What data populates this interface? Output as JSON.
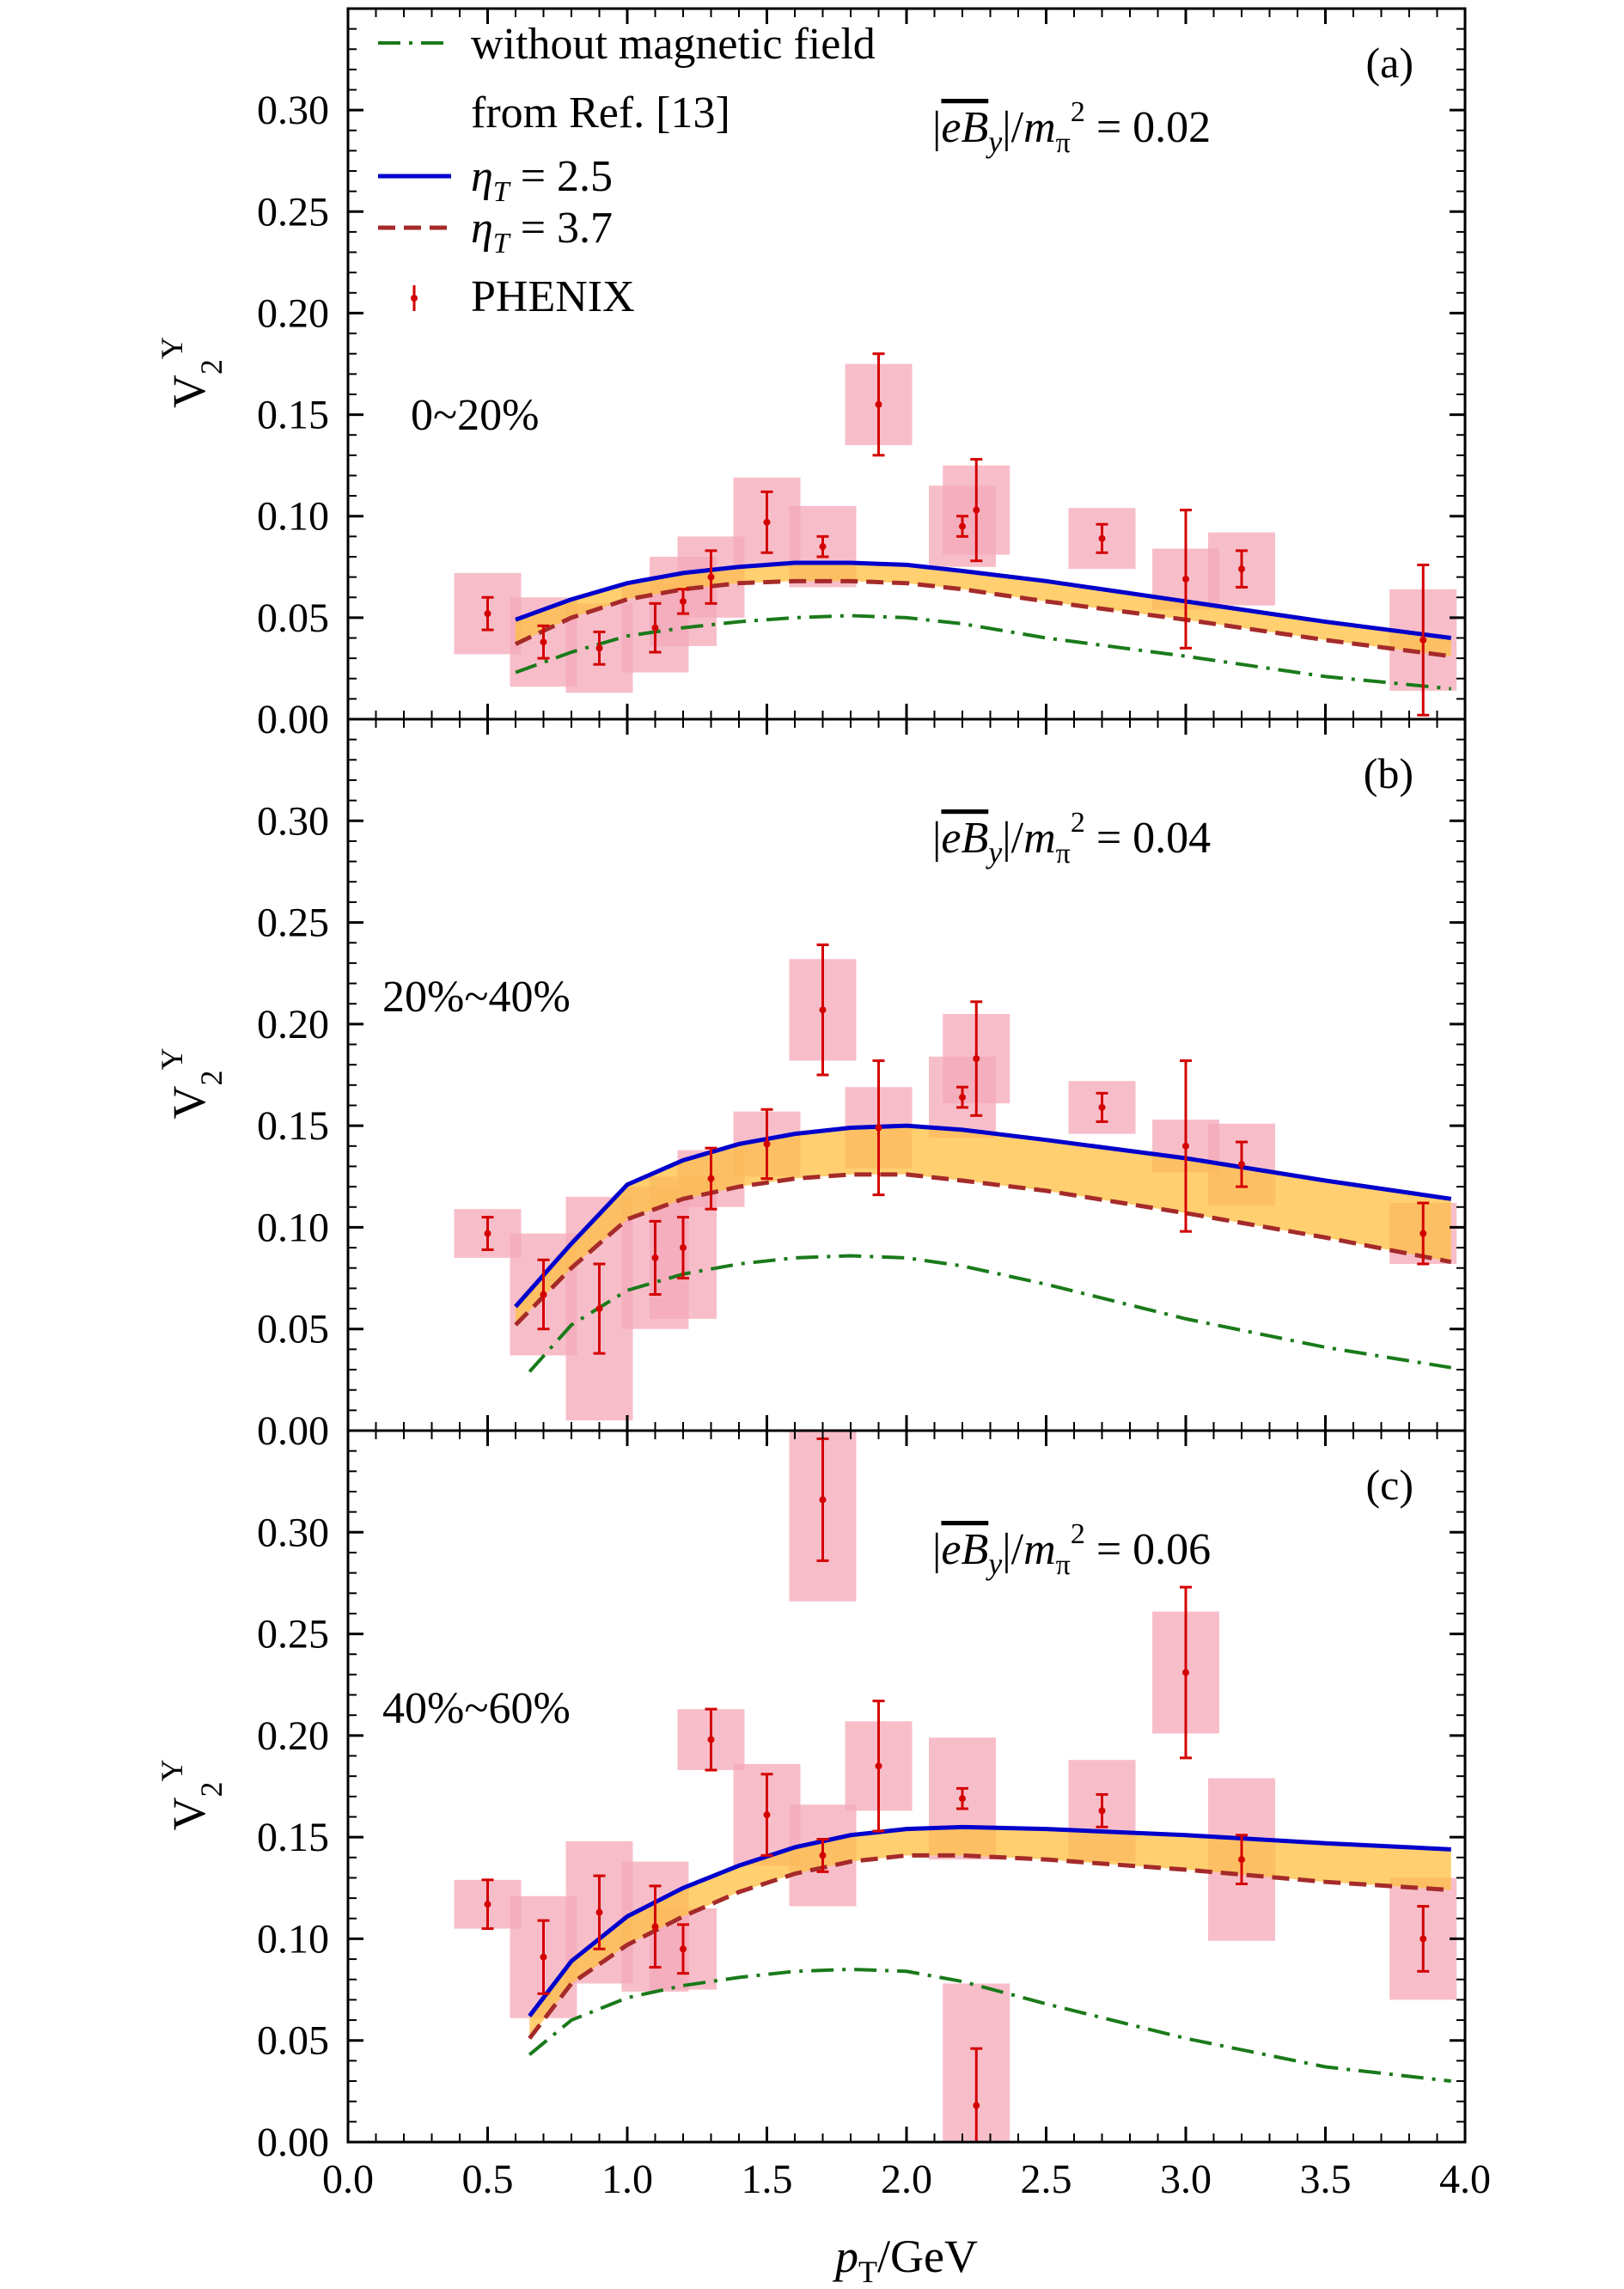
{
  "chart_data": {
    "type": "line",
    "xlabel": "p_T/GeV",
    "ylabel": "V_2^Y",
    "xlim": [
      0.0,
      4.0
    ],
    "ylim": [
      0.0,
      0.35
    ],
    "xticks": [
      "0.0",
      "0.5",
      "1.0",
      "1.5",
      "2.0",
      "2.5",
      "3.0",
      "3.5",
      "4.0"
    ],
    "yticks": [
      "0.00",
      "0.05",
      "0.10",
      "0.15",
      "0.20",
      "0.25",
      "0.30"
    ],
    "grid": false,
    "colors": {
      "no_field": "#1a7a1a",
      "eta25": "#0000cc",
      "eta37": "#a52a2a",
      "band": "#ffbf40",
      "data": "#d40000",
      "sys_box": "#f4a8b8"
    },
    "legend": {
      "placement": "top-left",
      "entries": [
        {
          "key": "no_field",
          "line1": "without magnetic field",
          "line2": "from Ref. [13]"
        },
        {
          "key": "eta25",
          "label": "η_T = 2.5"
        },
        {
          "key": "eta37",
          "label": "η_T = 3.7"
        },
        {
          "key": "phenix",
          "label": "PHENIX"
        }
      ]
    },
    "panels": [
      {
        "label": "(a)",
        "centrality": "0~20%",
        "field_label": "|eB_y|/m_π² = 0.02",
        "series": [
          {
            "key": "no_field",
            "x": [
              0.6,
              0.8,
              1.0,
              1.2,
              1.4,
              1.6,
              1.8,
              2.0,
              2.2,
              2.5,
              3.0,
              3.5,
              3.95
            ],
            "y": [
              0.023,
              0.033,
              0.041,
              0.045,
              0.048,
              0.05,
              0.051,
              0.05,
              0.047,
              0.04,
              0.031,
              0.021,
              0.015
            ]
          },
          {
            "key": "eta25",
            "x": [
              0.6,
              0.8,
              1.0,
              1.2,
              1.4,
              1.6,
              1.8,
              2.0,
              2.2,
              2.5,
              3.0,
              3.5,
              3.95
            ],
            "y": [
              0.049,
              0.059,
              0.067,
              0.072,
              0.075,
              0.077,
              0.077,
              0.076,
              0.073,
              0.068,
              0.058,
              0.048,
              0.04
            ]
          },
          {
            "key": "eta37",
            "x": [
              0.6,
              0.8,
              1.0,
              1.2,
              1.4,
              1.6,
              1.8,
              2.0,
              2.2,
              2.5,
              3.0,
              3.5,
              3.95
            ],
            "y": [
              0.037,
              0.05,
              0.059,
              0.064,
              0.067,
              0.068,
              0.068,
              0.067,
              0.064,
              0.058,
              0.049,
              0.039,
              0.031
            ]
          }
        ],
        "phenix": {
          "x": [
            0.5,
            0.7,
            0.9,
            1.1,
            1.2,
            1.3,
            1.5,
            1.7,
            1.9,
            2.2,
            2.25,
            2.7,
            3.0,
            3.2,
            3.85
          ],
          "y": [
            0.052,
            0.038,
            0.035,
            0.045,
            0.058,
            0.07,
            0.097,
            0.085,
            0.155,
            0.095,
            0.103,
            0.089,
            0.069,
            0.074,
            0.039
          ],
          "err": [
            0.008,
            0.008,
            0.008,
            0.012,
            0.006,
            0.013,
            0.015,
            0.005,
            0.025,
            0.005,
            0.025,
            0.007,
            0.034,
            0.009,
            0.037
          ],
          "sys": [
            0.02,
            0.022,
            0.022,
            0.022,
            0.022,
            0.02,
            0.022,
            0.02,
            0.02,
            0.02,
            0.022,
            0.015,
            0.015,
            0.018,
            0.025
          ]
        }
      },
      {
        "label": "(b)",
        "centrality": "20%~40%",
        "field_label": "|eB_y|/m_π² = 0.04",
        "series": [
          {
            "key": "no_field",
            "x": [
              0.65,
              0.8,
              1.0,
              1.2,
              1.4,
              1.6,
              1.8,
              2.0,
              2.2,
              2.5,
              3.0,
              3.5,
              3.95
            ],
            "y": [
              0.029,
              0.052,
              0.069,
              0.077,
              0.082,
              0.085,
              0.086,
              0.085,
              0.081,
              0.072,
              0.055,
              0.041,
              0.031
            ]
          },
          {
            "key": "eta25",
            "x": [
              0.6,
              0.8,
              1.0,
              1.2,
              1.4,
              1.6,
              1.8,
              2.0,
              2.2,
              2.5,
              3.0,
              3.5,
              3.95
            ],
            "y": [
              0.061,
              0.092,
              0.121,
              0.133,
              0.141,
              0.146,
              0.149,
              0.15,
              0.148,
              0.143,
              0.134,
              0.123,
              0.114
            ]
          },
          {
            "key": "eta37",
            "x": [
              0.6,
              0.8,
              1.0,
              1.2,
              1.4,
              1.6,
              1.8,
              2.0,
              2.2,
              2.5,
              3.0,
              3.5,
              3.95
            ],
            "y": [
              0.052,
              0.08,
              0.104,
              0.114,
              0.12,
              0.124,
              0.126,
              0.126,
              0.123,
              0.118,
              0.107,
              0.095,
              0.083
            ]
          }
        ],
        "phenix": {
          "x": [
            0.5,
            0.7,
            0.9,
            1.1,
            1.2,
            1.3,
            1.5,
            1.7,
            1.9,
            2.2,
            2.25,
            2.7,
            3.0,
            3.2,
            3.85
          ],
          "y": [
            0.097,
            0.067,
            0.06,
            0.085,
            0.09,
            0.124,
            0.141,
            0.207,
            0.149,
            0.164,
            0.183,
            0.159,
            0.14,
            0.131,
            0.097
          ],
          "err": [
            0.008,
            0.017,
            0.022,
            0.018,
            0.015,
            0.015,
            0.017,
            0.032,
            0.033,
            0.005,
            0.028,
            0.007,
            0.042,
            0.011,
            0.015
          ],
          "sys": [
            0.012,
            0.03,
            0.055,
            0.035,
            0.035,
            0.014,
            0.016,
            0.025,
            0.02,
            0.02,
            0.022,
            0.013,
            0.013,
            0.02,
            0.015
          ]
        }
      },
      {
        "label": "(c)",
        "centrality": "40%~60%",
        "field_label": "|eB_y|/m_π² = 0.06",
        "series": [
          {
            "key": "no_field",
            "x": [
              0.65,
              0.8,
              1.0,
              1.2,
              1.4,
              1.6,
              1.8,
              2.0,
              2.2,
              2.5,
              3.0,
              3.5,
              3.95
            ],
            "y": [
              0.043,
              0.06,
              0.071,
              0.077,
              0.081,
              0.084,
              0.085,
              0.084,
              0.079,
              0.068,
              0.051,
              0.037,
              0.03
            ]
          },
          {
            "key": "eta25",
            "x": [
              0.65,
              0.8,
              1.0,
              1.2,
              1.4,
              1.6,
              1.8,
              2.0,
              2.2,
              2.5,
              3.0,
              3.5,
              3.95
            ],
            "y": [
              0.062,
              0.089,
              0.111,
              0.125,
              0.136,
              0.145,
              0.151,
              0.154,
              0.155,
              0.154,
              0.151,
              0.147,
              0.144
            ]
          },
          {
            "key": "eta37",
            "x": [
              0.65,
              0.8,
              1.0,
              1.2,
              1.4,
              1.6,
              1.8,
              2.0,
              2.2,
              2.5,
              3.0,
              3.5,
              3.95
            ],
            "y": [
              0.051,
              0.078,
              0.097,
              0.111,
              0.123,
              0.132,
              0.138,
              0.141,
              0.141,
              0.139,
              0.134,
              0.128,
              0.124
            ]
          }
        ],
        "phenix": {
          "x": [
            0.5,
            0.7,
            0.9,
            1.1,
            1.2,
            1.3,
            1.5,
            1.7,
            1.7,
            1.9,
            2.2,
            2.25,
            2.7,
            3.0,
            3.2,
            3.85
          ],
          "y": [
            0.117,
            0.091,
            0.113,
            0.106,
            0.095,
            0.198,
            0.161,
            0.316,
            0.141,
            0.185,
            0.169,
            0.018,
            0.163,
            0.231,
            0.139,
            0.1
          ],
          "err": [
            0.012,
            0.018,
            0.018,
            0.02,
            0.012,
            0.015,
            0.02,
            0.03,
            0.008,
            0.032,
            0.005,
            0.028,
            0.008,
            0.042,
            0.012,
            0.016
          ],
          "sys": [
            0.012,
            0.03,
            0.035,
            0.032,
            0.02,
            0.015,
            0.025,
            0.05,
            0.025,
            0.022,
            0.03,
            0.06,
            0.025,
            0.03,
            0.04,
            0.03
          ]
        }
      }
    ]
  }
}
